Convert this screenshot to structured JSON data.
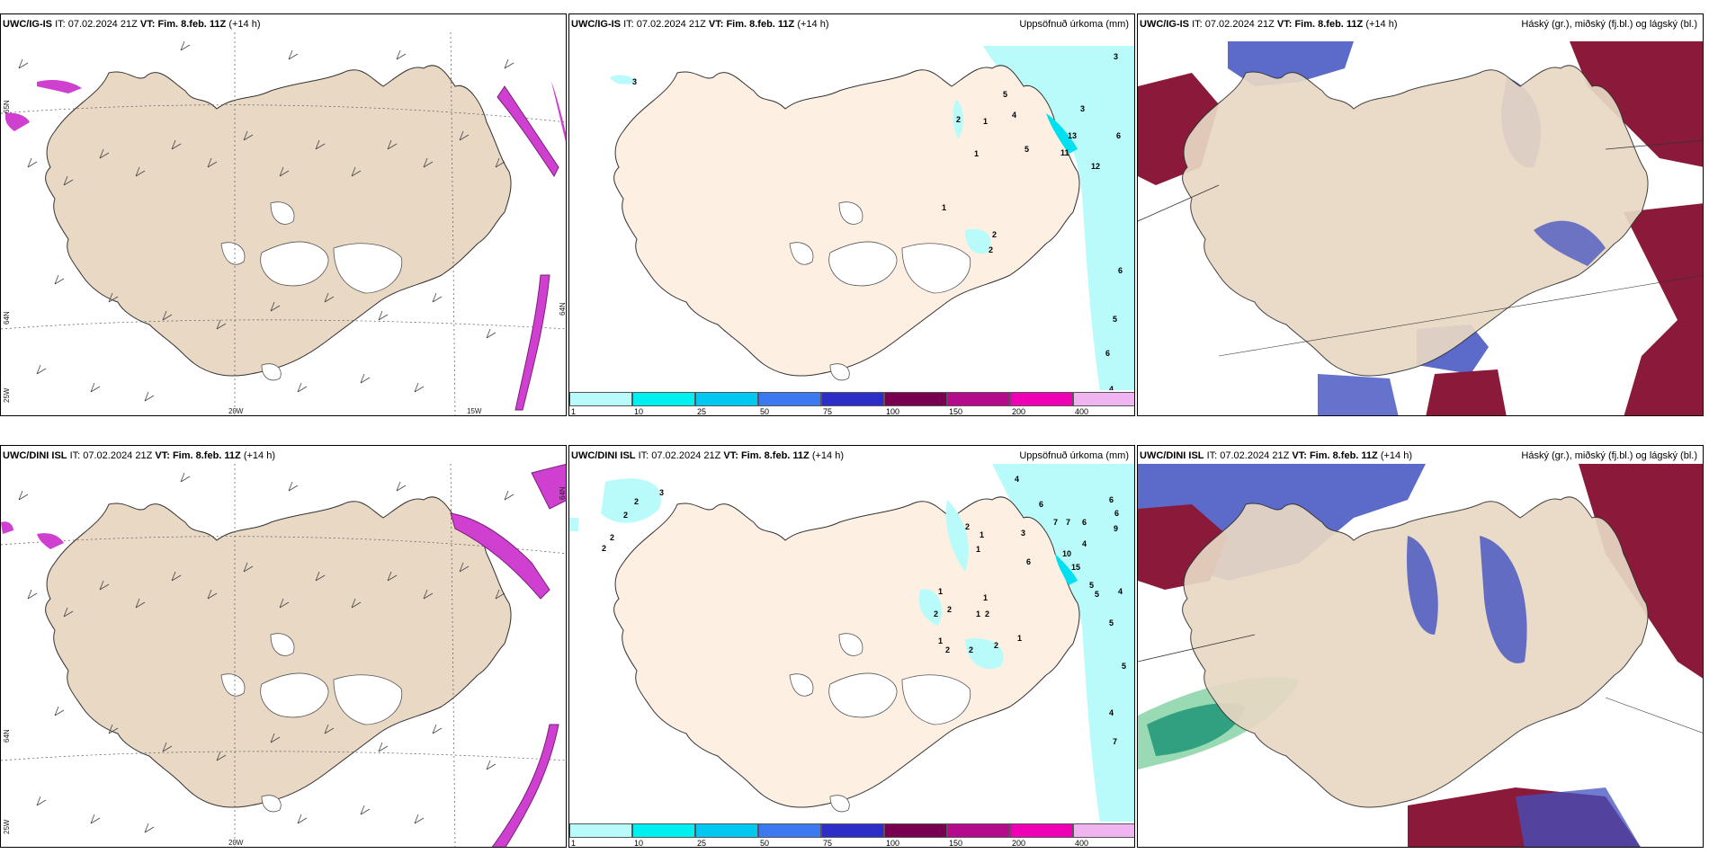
{
  "row1": {
    "wind": {
      "model": "UWC/IG-IS",
      "it_label": "IT:",
      "it": "07.02.2024 21Z",
      "vt_label": "VT:",
      "vt": "Fim. 8.feb. 11Z",
      "lead": "(+14 h)"
    },
    "precip": {
      "model": "UWC/IG-IS",
      "it_label": "IT:",
      "it": "07.02.2024 21Z",
      "vt_label": "VT:",
      "vt": "Fim. 8.feb. 11Z",
      "lead": "(+14 h)",
      "right_title": "Uppsöfnuð úrkoma (mm)"
    },
    "cloud": {
      "model": "UWC/IG-IS",
      "it_label": "IT:",
      "it": "07.02.2024 21Z",
      "vt_label": "VT:",
      "vt": "Fim. 8.feb. 11Z",
      "lead": "(+14 h)",
      "right_title": "Háský (gr.), miðský (fj.bl.) og lágský (bl.)"
    }
  },
  "row2": {
    "wind": {
      "model": "UWC/DINI ISL",
      "it_label": "IT:",
      "it": "07.02.2024 21Z",
      "vt_label": "VT:",
      "vt": "Fim. 8.feb. 11Z",
      "lead": "(+14 h)"
    },
    "precip": {
      "model": "UWC/DINI ISL",
      "it_label": "IT:",
      "it": "07.02.2024 21Z",
      "vt_label": "VT:",
      "vt": "Fim. 8.feb. 11Z",
      "lead": "(+14 h)",
      "right_title": "Uppsöfnuð úrkoma (mm)"
    },
    "cloud": {
      "model": "UWC/DINI ISL",
      "it_label": "IT:",
      "it": "07.02.2024 21Z",
      "vt_label": "VT:",
      "vt": "Fim. 8.feb. 11Z",
      "lead": "(+14 h)",
      "right_title": "Háský (gr.), miðský (fj.bl.) og lágský (bl.)"
    }
  },
  "axes": {
    "lon1": "20W",
    "lon2": "15W",
    "lat_left_a": "65N",
    "lat_left_b": "64N",
    "lat_left_c": "25W",
    "lat_right": "64N"
  },
  "legend": {
    "ticks": [
      "1",
      "10",
      "25",
      "50",
      "75",
      "100",
      "150",
      "200",
      "400"
    ],
    "colors": [
      "#b9fbfb",
      "#00f0f0",
      "#00c8f0",
      "#3c78f0",
      "#2d2dc8",
      "#780050",
      "#b40a8c",
      "#f000b4",
      "#f0b4f0"
    ]
  },
  "precip_values_row1": [
    "3",
    "3",
    "2",
    "1",
    "1",
    "5",
    "4",
    "3",
    "13",
    "11",
    "12",
    "6",
    "5",
    "1",
    "2",
    "2",
    "6",
    "5",
    "6",
    "4"
  ],
  "precip_values_row2": [
    "3",
    "2",
    "2",
    "2",
    "2",
    "4",
    "6",
    "7",
    "7",
    "6",
    "4",
    "10",
    "15",
    "9",
    "5",
    "5",
    "4",
    "5",
    "5",
    "4",
    "7",
    "2",
    "1",
    "1",
    "1",
    "1",
    "1",
    "2",
    "2",
    "2",
    "1",
    "1",
    "2",
    "2",
    "2",
    "6",
    "3",
    "6",
    "6"
  ],
  "colors": {
    "land": "#e8d8c4",
    "land_precip": "#fdf0e2",
    "sea": "#ffffff",
    "precip_light": "#b9fbfb",
    "wind_strong": "#d040d0",
    "cloud_high": "#8b1a3a",
    "cloud_mid": "#4050c0",
    "cloud_low_green": "#40b080"
  }
}
